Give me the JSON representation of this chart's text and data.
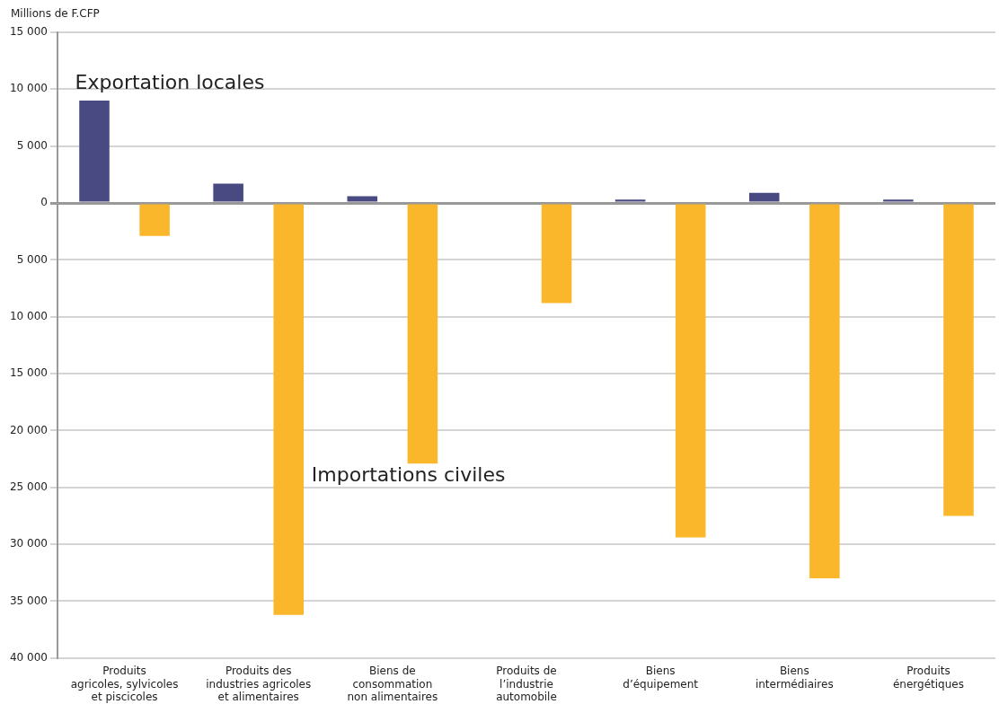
{
  "chart_data": {
    "type": "bar",
    "ylabel": "Millions de F.CFP",
    "categories": [
      "Produits\nagricoles, sylvicoles\net piscicoles",
      "Produits des\nindustries agricoles\net alimentaires",
      "Biens de\nconsommation\nnon alimentaires",
      "Produits de\nl’industrie\nautomobile",
      "Biens\nd’équipement",
      "Biens\nintermédiaires",
      "Produits\nénergétiques"
    ],
    "series": [
      {
        "name": "Exportation locales",
        "color": "#4a4a82",
        "values": [
          9000,
          1700,
          600,
          null,
          300,
          900,
          300
        ]
      },
      {
        "name": "Importations civiles",
        "color": "#fbb72c",
        "values": [
          -2900,
          -36200,
          -22900,
          -8800,
          -29400,
          -33000,
          -27500
        ]
      }
    ],
    "ylim": [
      -40000,
      15000
    ],
    "yticks": [
      {
        "value": -40000,
        "label": "40 000"
      },
      {
        "value": -35000,
        "label": "35 000"
      },
      {
        "value": -30000,
        "label": "30 000"
      },
      {
        "value": -25000,
        "label": "25 000"
      },
      {
        "value": -20000,
        "label": "20 000"
      },
      {
        "value": -15000,
        "label": "15 000"
      },
      {
        "value": -10000,
        "label": "10 000"
      },
      {
        "value": -5000,
        "label": "5 000"
      },
      0,
      {
        "value": 5000,
        "label": "5 000"
      },
      {
        "value": 10000,
        "label": "10 000"
      },
      {
        "value": 15000,
        "label": "15 000"
      }
    ],
    "grid": "y",
    "legend": false
  }
}
